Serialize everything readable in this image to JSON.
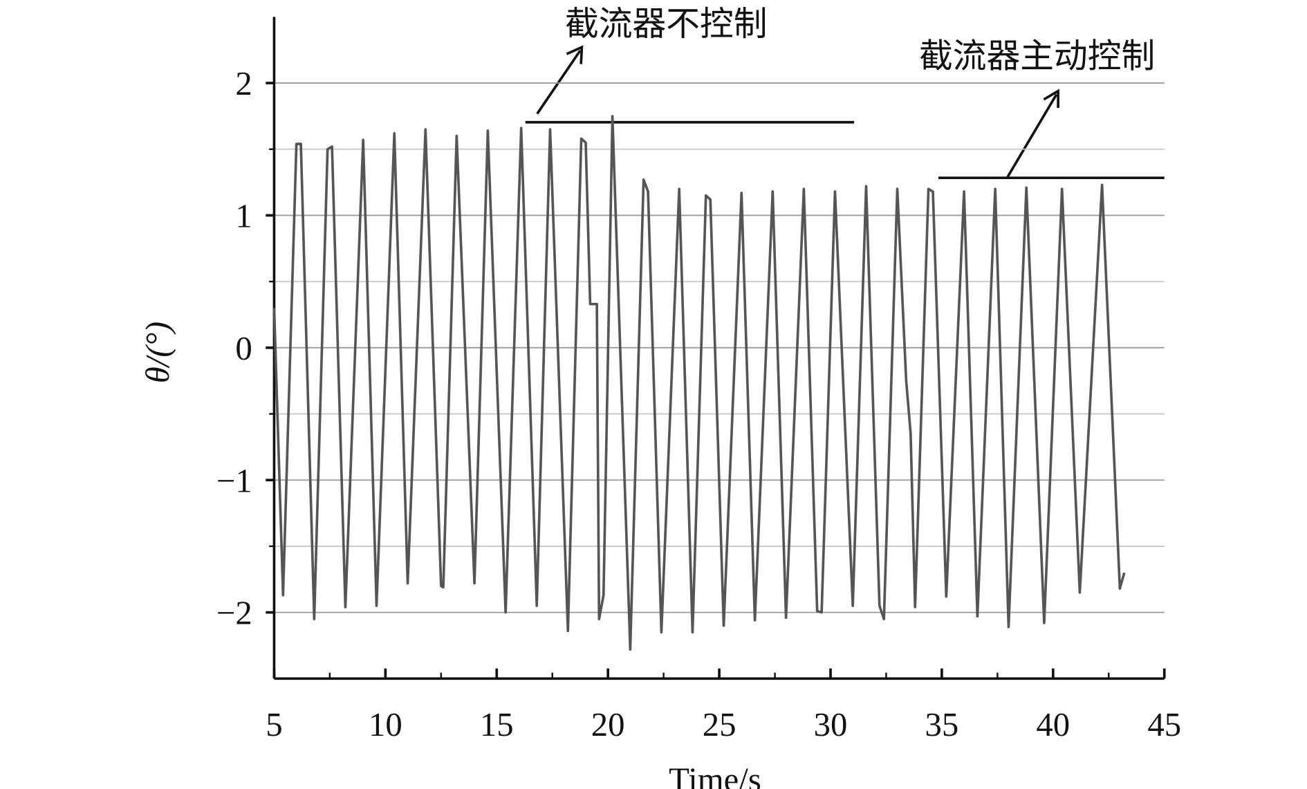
{
  "chart_data": {
    "type": "line",
    "xlabel": "Time/s",
    "ylabel": "θ/(°)",
    "annotations": [
      "截流器不控制",
      "截流器主动控制"
    ],
    "x": [
      5,
      5.4,
      6.0,
      6.2,
      6.8,
      7.4,
      7.6,
      8.2,
      9.0,
      9.6,
      10.4,
      11.0,
      11.8,
      12.5,
      12.6,
      13.2,
      14.0,
      14.6,
      15.4,
      16.1,
      16.8,
      17.4,
      18.2,
      18.8,
      19.0,
      19.2,
      19.5,
      19.6,
      19.8,
      20.2,
      21.0,
      21.6,
      21.8,
      22.4,
      23.2,
      23.8,
      24.4,
      24.6,
      25.2,
      26.0,
      26.6,
      27.4,
      28.0,
      28.8,
      29.4,
      29.6,
      30.2,
      31.0,
      31.6,
      32.2,
      32.4,
      33.0,
      33.4,
      33.6,
      33.8,
      34.4,
      34.6,
      35.2,
      36.0,
      36.6,
      37.4,
      38.0,
      38.8,
      39.6,
      40.4,
      41.2,
      42.2,
      43.0,
      43.2
    ],
    "series": [
      {
        "name": "θ",
        "color": "#555555",
        "values": [
          0.3,
          -1.87,
          1.54,
          1.54,
          -2.05,
          1.5,
          1.52,
          -1.96,
          1.57,
          -1.95,
          1.62,
          -1.78,
          1.65,
          -1.8,
          -1.81,
          1.6,
          -1.78,
          1.64,
          -2.0,
          1.66,
          -1.95,
          1.65,
          -2.14,
          1.58,
          1.55,
          0.33,
          0.33,
          -2.05,
          -1.87,
          1.75,
          -2.28,
          1.27,
          1.18,
          -2.15,
          1.2,
          -2.15,
          1.15,
          1.12,
          -2.1,
          1.17,
          -2.06,
          1.18,
          -2.04,
          1.2,
          -1.99,
          -2.0,
          1.18,
          -1.95,
          1.22,
          -1.95,
          -2.05,
          1.2,
          -0.25,
          -0.65,
          -1.96,
          1.2,
          1.18,
          -1.88,
          1.18,
          -2.03,
          1.2,
          -2.11,
          1.21,
          -2.08,
          1.2,
          -1.85,
          1.23,
          -1.82,
          -1.7
        ]
      }
    ],
    "xlim": [
      5,
      45
    ],
    "xticks": [
      5,
      10,
      15,
      20,
      25,
      30,
      35,
      40,
      45
    ],
    "xminor": [
      7.5,
      12.5,
      17.5,
      22.5,
      27.5,
      32.5,
      37.5,
      42.5
    ],
    "ylim": [
      -2.5,
      2.5
    ],
    "yticks": [
      {
        "value": -2,
        "label": "−2"
      },
      {
        "value": -1,
        "label": "−1"
      },
      0,
      1,
      2
    ],
    "yminor": [
      -1.5,
      -0.5,
      0.5,
      1.5
    ],
    "grid": true
  }
}
